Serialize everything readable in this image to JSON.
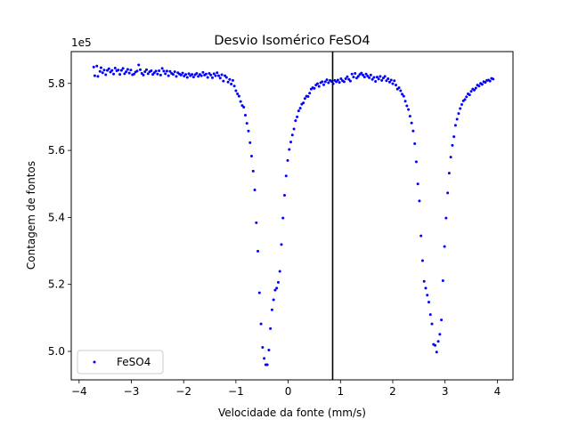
{
  "chart_data": {
    "type": "scatter",
    "title": "Desvio Isomérico FeSO4",
    "xlabel": "Velocidade da fonte (mm/s)",
    "ylabel": "Contagem de fontos",
    "y_offset_label": "1e5",
    "xlim": [
      -4.15,
      4.3
    ],
    "ylim": [
      491500,
      589500
    ],
    "x_ticks": [
      -4,
      -3,
      -2,
      -1,
      0,
      1,
      2,
      3,
      4
    ],
    "x_tick_labels": [
      "−4",
      "−3",
      "−2",
      "−1",
      "0",
      "1",
      "2",
      "3",
      "4"
    ],
    "y_ticks": [
      500000,
      520000,
      540000,
      560000,
      580000
    ],
    "y_tick_labels": [
      "5.0",
      "5.2",
      "5.4",
      "5.6",
      "5.8"
    ],
    "vline_x": 0.85,
    "legend_position": "lower left",
    "series": [
      {
        "name": "FeSO4",
        "color": "#0000ff",
        "points": [
          [
            -3.72,
            584900
          ],
          [
            -3.7,
            582300
          ],
          [
            -3.66,
            585200
          ],
          [
            -3.64,
            582100
          ],
          [
            -3.6,
            583600
          ],
          [
            -3.58,
            584700
          ],
          [
            -3.55,
            583200
          ],
          [
            -3.52,
            584000
          ],
          [
            -3.49,
            582600
          ],
          [
            -3.46,
            583900
          ],
          [
            -3.43,
            584400
          ],
          [
            -3.4,
            583400
          ],
          [
            -3.37,
            583900
          ],
          [
            -3.34,
            582800
          ],
          [
            -3.31,
            584600
          ],
          [
            -3.28,
            583800
          ],
          [
            -3.25,
            584000
          ],
          [
            -3.22,
            582700
          ],
          [
            -3.19,
            583900
          ],
          [
            -3.16,
            584500
          ],
          [
            -3.13,
            582900
          ],
          [
            -3.1,
            583500
          ],
          [
            -3.07,
            584200
          ],
          [
            -3.04,
            583100
          ],
          [
            -3.01,
            584000
          ],
          [
            -2.98,
            582600
          ],
          [
            -2.95,
            582800
          ],
          [
            -2.92,
            583400
          ],
          [
            -2.89,
            583700
          ],
          [
            -2.86,
            585500
          ],
          [
            -2.83,
            584100
          ],
          [
            -2.8,
            583000
          ],
          [
            -2.77,
            582500
          ],
          [
            -2.74,
            583500
          ],
          [
            -2.71,
            584100
          ],
          [
            -2.68,
            582900
          ],
          [
            -2.65,
            583500
          ],
          [
            -2.62,
            583800
          ],
          [
            -2.59,
            582700
          ],
          [
            -2.56,
            583200
          ],
          [
            -2.53,
            583700
          ],
          [
            -2.5,
            582800
          ],
          [
            -2.47,
            583800
          ],
          [
            -2.44,
            582500
          ],
          [
            -2.41,
            584500
          ],
          [
            -2.38,
            583700
          ],
          [
            -2.35,
            582900
          ],
          [
            -2.32,
            583700
          ],
          [
            -2.29,
            582300
          ],
          [
            -2.26,
            583600
          ],
          [
            -2.23,
            583000
          ],
          [
            -2.2,
            582700
          ],
          [
            -2.17,
            583500
          ],
          [
            -2.14,
            582100
          ],
          [
            -2.11,
            583200
          ],
          [
            -2.08,
            582800
          ],
          [
            -2.05,
            582500
          ],
          [
            -2.02,
            583100
          ],
          [
            -1.99,
            582200
          ],
          [
            -1.96,
            582700
          ],
          [
            -1.93,
            581800
          ],
          [
            -1.9,
            582900
          ],
          [
            -1.87,
            582300
          ],
          [
            -1.84,
            582700
          ],
          [
            -1.81,
            581900
          ],
          [
            -1.78,
            582600
          ],
          [
            -1.75,
            583000
          ],
          [
            -1.72,
            582100
          ],
          [
            -1.69,
            582700
          ],
          [
            -1.66,
            582300
          ],
          [
            -1.63,
            583300
          ],
          [
            -1.6,
            582500
          ],
          [
            -1.57,
            582800
          ],
          [
            -1.54,
            581800
          ],
          [
            -1.51,
            583000
          ],
          [
            -1.48,
            582500
          ],
          [
            -1.45,
            581700
          ],
          [
            -1.42,
            582900
          ],
          [
            -1.39,
            582300
          ],
          [
            -1.36,
            583200
          ],
          [
            -1.33,
            582300
          ],
          [
            -1.3,
            581600
          ],
          [
            -1.27,
            582600
          ],
          [
            -1.24,
            580700
          ],
          [
            -1.21,
            582300
          ],
          [
            -1.18,
            581800
          ],
          [
            -1.15,
            580400
          ],
          [
            -1.12,
            581200
          ],
          [
            -1.09,
            579800
          ],
          [
            -1.06,
            580900
          ],
          [
            -1.03,
            579200
          ],
          [
            -1.0,
            577800
          ],
          [
            -0.97,
            576900
          ],
          [
            -0.94,
            576200
          ],
          [
            -0.91,
            574600
          ],
          [
            -0.88,
            573400
          ],
          [
            -0.85,
            572900
          ],
          [
            -0.82,
            570500
          ],
          [
            -0.79,
            568100
          ],
          [
            -0.76,
            565800
          ],
          [
            -0.73,
            562300
          ],
          [
            -0.7,
            558300
          ],
          [
            -0.67,
            553800
          ],
          [
            -0.64,
            548200
          ],
          [
            -0.61,
            538400
          ],
          [
            -0.58,
            529900
          ],
          [
            -0.55,
            517500
          ],
          [
            -0.52,
            508200
          ],
          [
            -0.49,
            501200
          ],
          [
            -0.46,
            497900
          ],
          [
            -0.43,
            496000
          ],
          [
            -0.4,
            496000
          ],
          [
            -0.37,
            500400
          ],
          [
            -0.34,
            506800
          ],
          [
            -0.31,
            512400
          ],
          [
            -0.28,
            515400
          ],
          [
            -0.25,
            518300
          ],
          [
            -0.22,
            518900
          ],
          [
            -0.19,
            520600
          ],
          [
            -0.16,
            523900
          ],
          [
            -0.13,
            531900
          ],
          [
            -0.1,
            539800
          ],
          [
            -0.07,
            546600
          ],
          [
            -0.04,
            552400
          ],
          [
            -0.01,
            557000
          ],
          [
            0.02,
            560300
          ],
          [
            0.05,
            562500
          ],
          [
            0.08,
            564600
          ],
          [
            0.11,
            566400
          ],
          [
            0.14,
            568900
          ],
          [
            0.17,
            570000
          ],
          [
            0.2,
            571800
          ],
          [
            0.23,
            572600
          ],
          [
            0.26,
            573800
          ],
          [
            0.29,
            574200
          ],
          [
            0.32,
            575500
          ],
          [
            0.35,
            576200
          ],
          [
            0.38,
            576100
          ],
          [
            0.41,
            577100
          ],
          [
            0.44,
            578300
          ],
          [
            0.47,
            578700
          ],
          [
            0.5,
            578500
          ],
          [
            0.53,
            579500
          ],
          [
            0.56,
            579900
          ],
          [
            0.59,
            579100
          ],
          [
            0.62,
            580200
          ],
          [
            0.65,
            580500
          ],
          [
            0.68,
            579600
          ],
          [
            0.71,
            580500
          ],
          [
            0.74,
            581100
          ],
          [
            0.77,
            580200
          ],
          [
            0.8,
            580900
          ],
          [
            0.83,
            580600
          ],
          [
            0.86,
            579900
          ],
          [
            0.89,
            580900
          ],
          [
            0.92,
            580500
          ],
          [
            0.95,
            581000
          ],
          [
            0.98,
            580300
          ],
          [
            1.01,
            581400
          ],
          [
            1.04,
            580800
          ],
          [
            1.07,
            580500
          ],
          [
            1.1,
            581400
          ],
          [
            1.13,
            582000
          ],
          [
            1.16,
            581200
          ],
          [
            1.19,
            580700
          ],
          [
            1.22,
            582800
          ],
          [
            1.25,
            581900
          ],
          [
            1.28,
            583000
          ],
          [
            1.31,
            581600
          ],
          [
            1.34,
            582100
          ],
          [
            1.37,
            582700
          ],
          [
            1.4,
            583100
          ],
          [
            1.43,
            582500
          ],
          [
            1.46,
            581900
          ],
          [
            1.49,
            582800
          ],
          [
            1.52,
            582200
          ],
          [
            1.55,
            581700
          ],
          [
            1.58,
            582500
          ],
          [
            1.61,
            581200
          ],
          [
            1.64,
            581800
          ],
          [
            1.67,
            580600
          ],
          [
            1.7,
            581900
          ],
          [
            1.73,
            581300
          ],
          [
            1.76,
            582100
          ],
          [
            1.79,
            580900
          ],
          [
            1.82,
            581600
          ],
          [
            1.85,
            582100
          ],
          [
            1.88,
            580800
          ],
          [
            1.91,
            581400
          ],
          [
            1.94,
            580400
          ],
          [
            1.97,
            581000
          ],
          [
            2.0,
            579900
          ],
          [
            2.03,
            580800
          ],
          [
            2.06,
            579500
          ],
          [
            2.09,
            578300
          ],
          [
            2.12,
            578700
          ],
          [
            2.15,
            577800
          ],
          [
            2.18,
            576800
          ],
          [
            2.21,
            576200
          ],
          [
            2.24,
            574700
          ],
          [
            2.27,
            573300
          ],
          [
            2.3,
            572200
          ],
          [
            2.33,
            570200
          ],
          [
            2.36,
            568200
          ],
          [
            2.39,
            565800
          ],
          [
            2.42,
            562000
          ],
          [
            2.45,
            556600
          ],
          [
            2.48,
            550000
          ],
          [
            2.51,
            544900
          ],
          [
            2.54,
            534500
          ],
          [
            2.57,
            527100
          ],
          [
            2.6,
            520900
          ],
          [
            2.63,
            518900
          ],
          [
            2.66,
            516800
          ],
          [
            2.69,
            514700
          ],
          [
            2.72,
            511000
          ],
          [
            2.75,
            508200
          ],
          [
            2.78,
            502100
          ],
          [
            2.81,
            501800
          ],
          [
            2.84,
            499800
          ],
          [
            2.87,
            503000
          ],
          [
            2.9,
            505100
          ],
          [
            2.93,
            509400
          ],
          [
            2.96,
            521100
          ],
          [
            2.99,
            531300
          ],
          [
            3.02,
            539800
          ],
          [
            3.05,
            547300
          ],
          [
            3.08,
            553200
          ],
          [
            3.11,
            558000
          ],
          [
            3.14,
            561500
          ],
          [
            3.17,
            564100
          ],
          [
            3.2,
            567500
          ],
          [
            3.23,
            569300
          ],
          [
            3.26,
            571000
          ],
          [
            3.29,
            572500
          ],
          [
            3.32,
            573700
          ],
          [
            3.35,
            574800
          ],
          [
            3.38,
            575200
          ],
          [
            3.41,
            576000
          ],
          [
            3.44,
            576900
          ],
          [
            3.47,
            576600
          ],
          [
            3.5,
            577600
          ],
          [
            3.53,
            578300
          ],
          [
            3.56,
            578000
          ],
          [
            3.59,
            578600
          ],
          [
            3.62,
            579500
          ],
          [
            3.65,
            579200
          ],
          [
            3.68,
            580000
          ],
          [
            3.71,
            579700
          ],
          [
            3.74,
            580500
          ],
          [
            3.77,
            580300
          ],
          [
            3.8,
            580900
          ],
          [
            3.83,
            581000
          ],
          [
            3.86,
            580700
          ],
          [
            3.89,
            581500
          ],
          [
            3.92,
            581300
          ]
        ]
      }
    ]
  }
}
